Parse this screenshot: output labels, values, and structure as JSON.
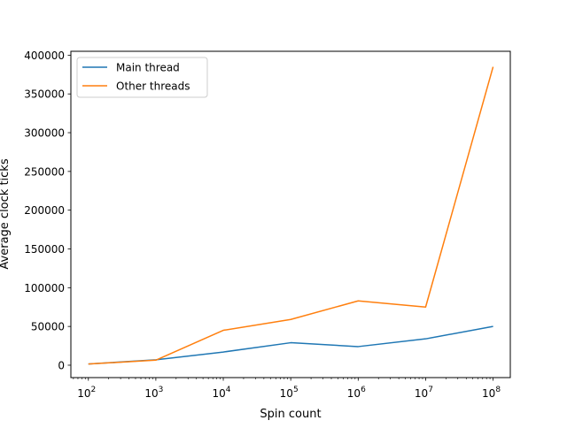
{
  "chart_data": {
    "type": "line",
    "xscale": "log",
    "x": [
      100,
      1000,
      10000,
      100000,
      1000000,
      10000000,
      100000000
    ],
    "xticks": [
      {
        "base": "10",
        "exp": "2"
      },
      {
        "base": "10",
        "exp": "3"
      },
      {
        "base": "10",
        "exp": "4"
      },
      {
        "base": "10",
        "exp": "5"
      },
      {
        "base": "10",
        "exp": "6"
      },
      {
        "base": "10",
        "exp": "7"
      },
      {
        "base": "10",
        "exp": "8"
      }
    ],
    "series": [
      {
        "name": "Main thread",
        "color": "#1f77b4",
        "values": [
          1500,
          7000,
          17000,
          29000,
          24000,
          34000,
          50000
        ]
      },
      {
        "name": "Other threads",
        "color": "#ff7f0e",
        "values": [
          1500,
          6500,
          45000,
          59000,
          83000,
          75000,
          385000
        ]
      }
    ],
    "yticks": [
      "0",
      "50000",
      "100000",
      "150000",
      "200000",
      "250000",
      "300000",
      "350000",
      "400000"
    ],
    "ylim": [
      -16000,
      405000
    ],
    "xlim": [
      55,
      180000000
    ],
    "xlabel": "Spin count",
    "ylabel": "Average clock ticks",
    "grid": false,
    "legend": "upper-left"
  }
}
